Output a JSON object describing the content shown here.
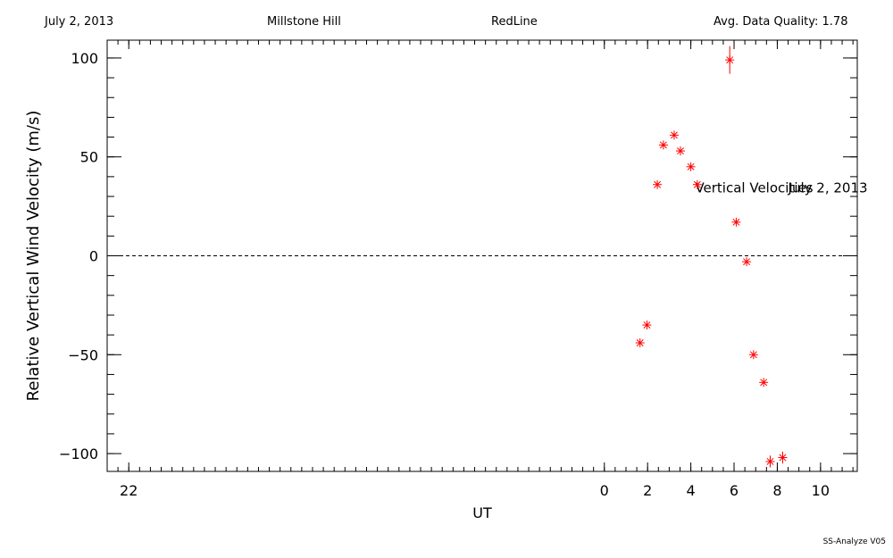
{
  "header": {
    "date": "July 2, 2013",
    "site": "Millstone Hill",
    "filter": "RedLine",
    "quality": "Avg. Data Quality: 1.78"
  },
  "footer": {
    "software": "SS-Analyze V05"
  },
  "chart_data": {
    "type": "scatter",
    "xlabel": "UT",
    "ylabel": "Relative Vertical Wind Velocity (m/s)",
    "xlim": [
      -23.0,
      11.7
    ],
    "ylim": [
      -109,
      109
    ],
    "x_tick_values": [
      -22,
      0,
      2,
      4,
      6,
      8,
      10
    ],
    "x_tick_labels": [
      "22",
      "0",
      "2",
      "4",
      "6",
      "8",
      "10"
    ],
    "x_minor_step": 0.5,
    "y_tick_values": [
      -100,
      -50,
      0,
      50,
      100
    ],
    "y_tick_labels": [
      "−100",
      "−50",
      "0",
      "50",
      "100"
    ],
    "y_minor_step": 10,
    "zero_line": "dashed",
    "marker": "asterisk",
    "marker_color": "#ff0000",
    "annotations": [
      {
        "text": "Vertical Velocities",
        "x": 4.2,
        "y": 32
      },
      {
        "text": "July 2, 2013",
        "x": 8.5,
        "y": 32
      }
    ],
    "series": [
      {
        "points": [
          {
            "x": 1.65,
            "y": -44,
            "err": 0
          },
          {
            "x": 1.97,
            "y": -35,
            "err": 0
          },
          {
            "x": 2.45,
            "y": 36,
            "err": 0
          },
          {
            "x": 2.73,
            "y": 56,
            "err": 0
          },
          {
            "x": 3.23,
            "y": 61,
            "err": 0
          },
          {
            "x": 3.52,
            "y": 53,
            "err": 0
          },
          {
            "x": 4.0,
            "y": 45,
            "err": 0
          },
          {
            "x": 4.3,
            "y": 36,
            "err": 0
          },
          {
            "x": 5.8,
            "y": 99,
            "err": 7
          },
          {
            "x": 6.1,
            "y": 17,
            "err": 0
          },
          {
            "x": 6.58,
            "y": -3,
            "err": 0
          },
          {
            "x": 6.9,
            "y": -50,
            "err": 0
          },
          {
            "x": 7.37,
            "y": -64,
            "err": 0
          },
          {
            "x": 7.67,
            "y": -104,
            "err": 3
          },
          {
            "x": 8.25,
            "y": -102,
            "err": 3
          }
        ]
      }
    ]
  }
}
